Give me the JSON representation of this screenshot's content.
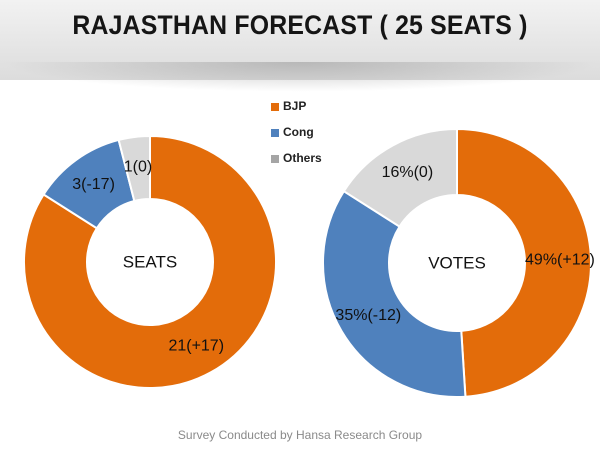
{
  "title": "RAJASTHAN FORECAST ( 25 SEATS )",
  "footer": "Survey Conducted by Hansa Research Group",
  "legend": [
    {
      "label": "BJP",
      "color": "#e36c0a"
    },
    {
      "label": "Cong",
      "color": "#4f81bd"
    },
    {
      "label": "Others",
      "color": "#a5a5a5"
    }
  ],
  "chart_data": [
    {
      "type": "pie",
      "title": "SEATS",
      "categories": [
        "BJP",
        "Cong",
        "Others"
      ],
      "values": [
        21,
        3,
        1
      ],
      "data_labels": [
        "21(+17)",
        "3(-17)",
        "1(0)"
      ],
      "colors": [
        "#e36c0a",
        "#4f81bd",
        "#d9d9d9"
      ]
    },
    {
      "type": "pie",
      "title": "VOTES",
      "categories": [
        "BJP",
        "Cong",
        "Others"
      ],
      "values": [
        49,
        35,
        16
      ],
      "data_labels": [
        "49%(+12)",
        "35%(-12)",
        "16%(0)"
      ],
      "colors": [
        "#e36c0a",
        "#4f81bd",
        "#d9d9d9"
      ]
    }
  ]
}
